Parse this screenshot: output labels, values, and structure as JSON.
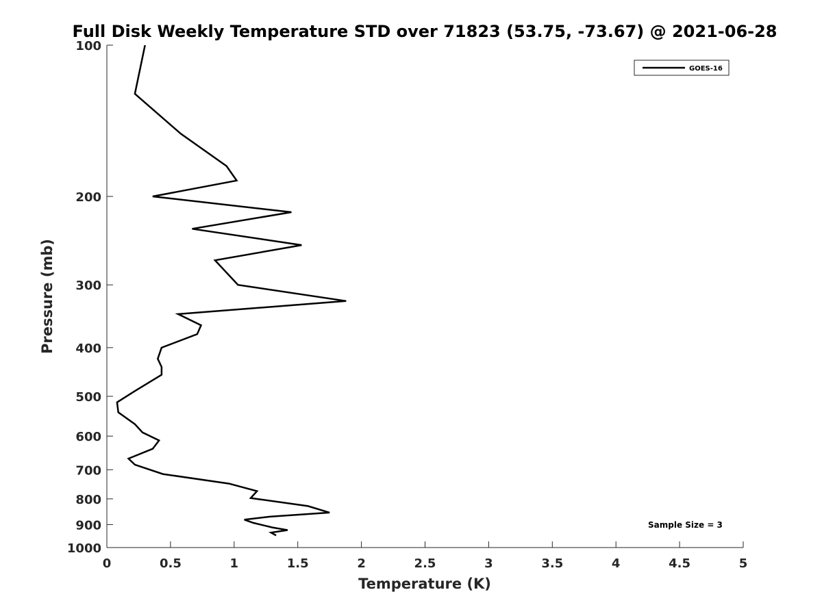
{
  "chart_data": {
    "type": "line",
    "title": "Full Disk Weekly Temperature STD over 71823 (53.75, -73.67) @ 2021-06-28",
    "xlabel": "Temperature (K)",
    "ylabel": "Pressure (mb)",
    "xlim": [
      0,
      5
    ],
    "ylim": [
      100,
      1000
    ],
    "y_scale": "log",
    "y_reversed": true,
    "x_ticks": [
      0,
      0.5,
      1,
      1.5,
      2,
      2.5,
      3,
      3.5,
      4,
      4.5,
      5
    ],
    "x_tick_labels": [
      "0",
      "0.5",
      "1",
      "1.5",
      "2",
      "2.5",
      "3",
      "3.5",
      "4",
      "4.5",
      "5"
    ],
    "y_ticks": [
      100,
      200,
      300,
      400,
      500,
      600,
      700,
      800,
      900,
      1000
    ],
    "y_tick_labels": [
      "100",
      "200",
      "300",
      "400",
      "500",
      "600",
      "700",
      "800",
      "900",
      "1000"
    ],
    "grid": false,
    "legend_position": "top-right",
    "annotation": "Sample Size = 3",
    "series": [
      {
        "name": "GOES-16",
        "color": "#000000",
        "points": [
          [
            0.3,
            100
          ],
          [
            0.22,
            125
          ],
          [
            0.58,
            150
          ],
          [
            0.94,
            174
          ],
          [
            1.02,
            186
          ],
          [
            0.36,
            200
          ],
          [
            1.45,
            215
          ],
          [
            0.67,
            232
          ],
          [
            1.53,
            250
          ],
          [
            0.85,
            268
          ],
          [
            1.03,
            300
          ],
          [
            1.88,
            323
          ],
          [
            0.56,
            343
          ],
          [
            0.74,
            361
          ],
          [
            0.71,
            376
          ],
          [
            0.43,
            400
          ],
          [
            0.4,
            421
          ],
          [
            0.43,
            437
          ],
          [
            0.43,
            453
          ],
          [
            0.22,
            488
          ],
          [
            0.08,
            514
          ],
          [
            0.09,
            538
          ],
          [
            0.22,
            568
          ],
          [
            0.28,
            590
          ],
          [
            0.41,
            612
          ],
          [
            0.36,
            636
          ],
          [
            0.17,
            665
          ],
          [
            0.22,
            684
          ],
          [
            0.44,
            714
          ],
          [
            0.96,
            746
          ],
          [
            1.18,
            772
          ],
          [
            1.13,
            797
          ],
          [
            1.58,
            827
          ],
          [
            1.75,
            852
          ],
          [
            1.28,
            868
          ],
          [
            1.08,
            880
          ],
          [
            1.15,
            893
          ],
          [
            1.3,
            912
          ],
          [
            1.42,
            923
          ],
          [
            1.29,
            934
          ],
          [
            1.33,
            946
          ]
        ]
      }
    ]
  }
}
